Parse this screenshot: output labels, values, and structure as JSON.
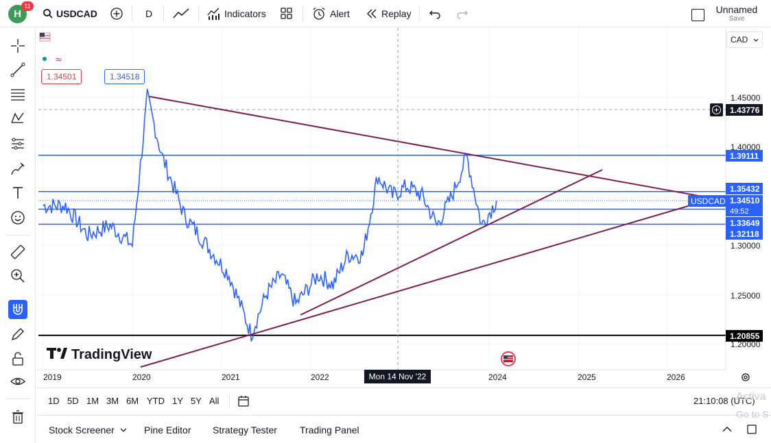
{
  "topbar": {
    "avatar_letter": "H",
    "notification_count": "11",
    "symbol": "USDCAD",
    "interval": "D",
    "indicators_label": "Indicators",
    "alert_label": "Alert",
    "replay_label": "Replay",
    "layout_name": "Unnamed",
    "save_label": "Save"
  },
  "chart": {
    "currency": "CAD",
    "sell_price": "1.34501",
    "buy_price": "1.34518",
    "symbol_tag": "USDCAD",
    "crosshair_price": "1.43776",
    "crosshair_date": "Mon 14 Nov '22",
    "countdown": "49:52",
    "watermark": "TradingView",
    "price_ticks": [
      "1.45000",
      "1.40000",
      "1.30000",
      "1.25000",
      "1.20000"
    ],
    "level_tags": [
      {
        "value": "1.39111",
        "color": "#2962ff"
      },
      {
        "value": "1.35432",
        "color": "#2962ff"
      },
      {
        "value": "1.34510",
        "color": "#2962ff"
      },
      {
        "value": "1.33649",
        "color": "#2962ff"
      },
      {
        "value": "1.32118",
        "color": "#2962ff"
      },
      {
        "value": "1.20855",
        "color": "#000000"
      }
    ],
    "time_ticks": [
      "2019",
      "2020",
      "2021",
      "2022",
      "2024",
      "2025",
      "2026"
    ]
  },
  "chart_data": {
    "type": "line",
    "title": "",
    "xlabel": "",
    "ylabel": "",
    "x": [
      "2019-01",
      "2019-04",
      "2019-07",
      "2019-10",
      "2020-01",
      "2020-03",
      "2020-05",
      "2020-08",
      "2020-11",
      "2021-02",
      "2021-05",
      "2021-07",
      "2021-09",
      "2021-11",
      "2022-02",
      "2022-04",
      "2022-06",
      "2022-08",
      "2022-10",
      "2022-12",
      "2023-02",
      "2023-04",
      "2023-06",
      "2023-08",
      "2023-10",
      "2023-12",
      "2024-02"
    ],
    "series": [
      {
        "values": [
          1.34,
          1.34,
          1.31,
          1.32,
          1.3,
          1.45,
          1.39,
          1.33,
          1.3,
          1.27,
          1.21,
          1.25,
          1.27,
          1.24,
          1.27,
          1.26,
          1.29,
          1.29,
          1.37,
          1.35,
          1.36,
          1.35,
          1.32,
          1.35,
          1.39,
          1.32,
          1.345
        ]
      }
    ],
    "ylim": [
      1.19,
      1.47
    ],
    "grid": true,
    "horizontal_levels": [
      1.39111,
      1.35432,
      1.33649,
      1.32118,
      1.20855
    ],
    "last_price": 1.3451
  },
  "range_buttons": [
    "1D",
    "5D",
    "1M",
    "3M",
    "6M",
    "YTD",
    "1Y",
    "5Y",
    "All"
  ],
  "clock": "21:10:08 (UTC)",
  "bottom_tabs": [
    "Stock Screener",
    "Pine Editor",
    "Strategy Tester",
    "Trading Panel"
  ],
  "watermark_activate": "Activa",
  "watermark_goto": "Go to S",
  "colors": {
    "accent": "#2962ff",
    "trendline": "#7b1e4f",
    "price_line": "#2962ff"
  }
}
